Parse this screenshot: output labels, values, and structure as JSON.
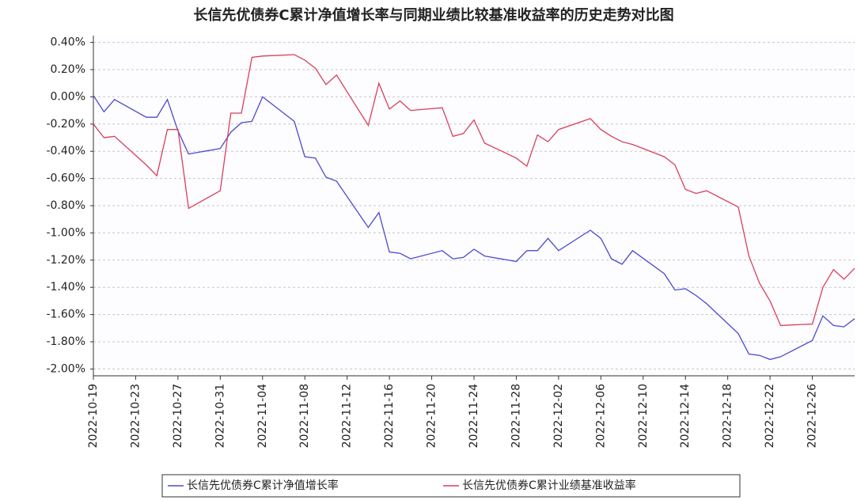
{
  "chart_data": {
    "type": "line",
    "title": "长信先优债券C累计净值增长率与同期业绩比较基准收益率的历史走势对比图",
    "x": [
      "2022-10-19",
      "2022-10-20",
      "2022-10-21",
      "2022-10-24",
      "2022-10-25",
      "2022-10-26",
      "2022-10-27",
      "2022-10-28",
      "2022-10-31",
      "2022-11-01",
      "2022-11-02",
      "2022-11-03",
      "2022-11-04",
      "2022-11-07",
      "2022-11-08",
      "2022-11-09",
      "2022-11-10",
      "2022-11-11",
      "2022-11-14",
      "2022-11-15",
      "2022-11-16",
      "2022-11-17",
      "2022-11-18",
      "2022-11-21",
      "2022-11-22",
      "2022-11-23",
      "2022-11-24",
      "2022-11-25",
      "2022-11-28",
      "2022-11-29",
      "2022-11-30",
      "2022-12-01",
      "2022-12-02",
      "2022-12-05",
      "2022-12-06",
      "2022-12-07",
      "2022-12-08",
      "2022-12-09",
      "2022-12-12",
      "2022-12-13",
      "2022-12-14",
      "2022-12-15",
      "2022-12-16",
      "2022-12-19",
      "2022-12-20",
      "2022-12-21",
      "2022-12-22",
      "2022-12-23",
      "2022-12-26",
      "2022-12-27",
      "2022-12-28",
      "2022-12-29",
      "2022-12-30"
    ],
    "series": [
      {
        "name": "长信先优债券C累计净值增长率",
        "color": "#4a4ad0",
        "values": [
          0.01,
          -0.11,
          -0.02,
          -0.15,
          -0.15,
          -0.02,
          -0.25,
          -0.42,
          -0.38,
          -0.26,
          -0.19,
          -0.18,
          0.0,
          -0.18,
          -0.44,
          -0.45,
          -0.59,
          -0.62,
          -0.96,
          -0.85,
          -1.14,
          -1.15,
          -1.19,
          -1.13,
          -1.19,
          -1.18,
          -1.12,
          -1.17,
          -1.21,
          -1.13,
          -1.13,
          -1.04,
          -1.13,
          -0.98,
          -1.04,
          -1.19,
          -1.23,
          -1.13,
          -1.3,
          -1.42,
          -1.41,
          -1.46,
          -1.52,
          -1.74,
          -1.89,
          -1.9,
          -1.93,
          -1.91,
          -1.79,
          -1.61,
          -1.68,
          -1.69,
          -1.63
        ]
      },
      {
        "name": "长信先优债券C累计业绩基准收益率",
        "color": "#d8405a",
        "values": [
          -0.2,
          -0.3,
          -0.29,
          -0.5,
          -0.58,
          -0.24,
          -0.24,
          -0.82,
          -0.69,
          -0.12,
          -0.12,
          0.29,
          0.3,
          0.31,
          0.27,
          0.21,
          0.09,
          0.16,
          -0.21,
          0.1,
          -0.09,
          -0.03,
          -0.1,
          -0.08,
          -0.29,
          -0.27,
          -0.17,
          -0.34,
          -0.45,
          -0.51,
          -0.28,
          -0.33,
          -0.24,
          -0.16,
          -0.24,
          -0.29,
          -0.33,
          -0.35,
          -0.44,
          -0.5,
          -0.68,
          -0.71,
          -0.69,
          -0.81,
          -1.17,
          -1.37,
          -1.5,
          -1.68,
          -1.67,
          -1.4,
          -1.27,
          -1.34,
          -1.26
        ]
      }
    ],
    "xlim": [
      "2022-10-19",
      "2022-12-30"
    ],
    "xticks": [
      "2022-10-19",
      "2022-10-23",
      "2022-10-27",
      "2022-10-31",
      "2022-11-04",
      "2022-11-08",
      "2022-11-12",
      "2022-11-16",
      "2022-11-20",
      "2022-11-24",
      "2022-11-28",
      "2022-12-02",
      "2022-12-06",
      "2022-12-10",
      "2022-12-14",
      "2022-12-18",
      "2022-12-22",
      "2022-12-26"
    ],
    "ylim": [
      -2.05,
      0.45
    ],
    "yticks": [
      {
        "value": 0.4,
        "label": "0.40%"
      },
      {
        "value": 0.2,
        "label": "0.20%"
      },
      {
        "value": 0,
        "label": "0.00%"
      },
      {
        "value": -0.2,
        "label": "-0.20%"
      },
      {
        "value": -0.4,
        "label": "-0.40%"
      },
      {
        "value": -0.6,
        "label": "-0.60%"
      },
      {
        "value": -0.8,
        "label": "-0.80%"
      },
      {
        "value": -1,
        "label": "-1.00%"
      },
      {
        "value": -1.2,
        "label": "-1.20%"
      },
      {
        "value": -1.4,
        "label": "-1.40%"
      },
      {
        "value": -1.6,
        "label": "-1.60%"
      },
      {
        "value": -1.8,
        "label": "-1.80%"
      },
      {
        "value": -2,
        "label": "-2.00%"
      }
    ],
    "grid": true
  }
}
